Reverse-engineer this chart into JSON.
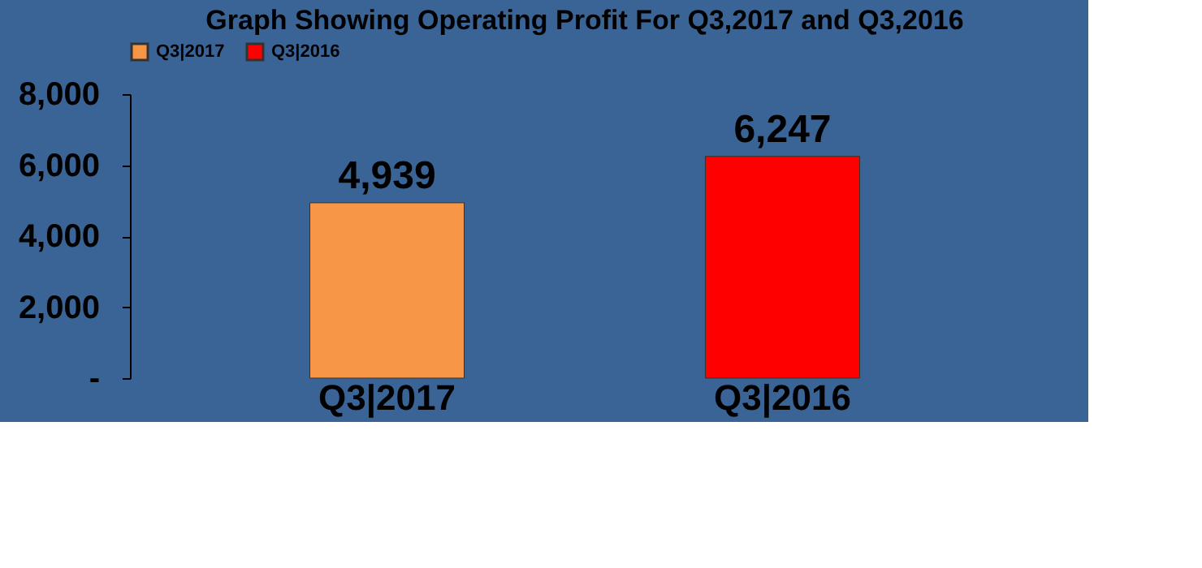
{
  "chart_data": {
    "type": "bar",
    "title": "Graph Showing Operating Profit For Q3,2017 and Q3,2016",
    "categories": [
      "Q3|2017",
      "Q3|2016"
    ],
    "series": [
      {
        "name": "Q3|2017",
        "color": "#f79646",
        "values": [
          4939,
          null
        ],
        "value_labels": [
          "4,939",
          null
        ]
      },
      {
        "name": "Q3|2016",
        "color": "#ff0000",
        "values": [
          null,
          6247
        ],
        "value_labels": [
          null,
          "6,247"
        ]
      }
    ],
    "ylim": [
      0,
      8000
    ],
    "yticks": [
      {
        "value": 0,
        "label": "-"
      },
      {
        "value": 2000,
        "label": "2,000"
      },
      {
        "value": 4000,
        "label": "4,000"
      },
      {
        "value": 6000,
        "label": "6,000"
      },
      {
        "value": 8000,
        "label": "8,000"
      }
    ],
    "legend": "top",
    "grid": false
  }
}
